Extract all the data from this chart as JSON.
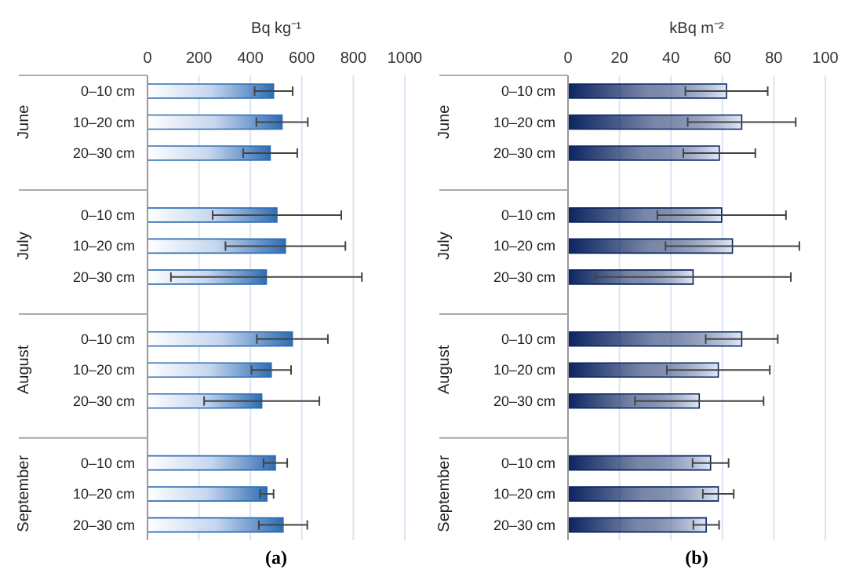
{
  "chart_data": [
    {
      "type": "bar",
      "orientation": "horizontal",
      "title": "(a)",
      "xlabel": "Bq kg⁻¹",
      "categories": [
        "0–10 cm",
        "10–20 cm",
        "20–30 cm",
        null,
        "0–10 cm",
        "10–20 cm",
        "20–30 cm",
        null,
        "0–10 cm",
        "10–20 cm",
        "20–30 cm",
        null,
        "0–10 cm",
        "10–20 cm",
        "20–30 cm"
      ],
      "values": [
        490,
        523,
        477,
        null,
        503,
        536,
        462,
        null,
        563,
        481,
        444,
        null,
        497,
        464,
        527
      ],
      "errors": [
        74,
        100,
        105,
        null,
        250,
        233,
        371,
        null,
        138,
        77,
        224,
        null,
        46,
        26,
        94
      ],
      "color": "#2f6db3",
      "xlim": [
        0,
        1000
      ],
      "xticks": [
        0,
        200,
        400,
        600,
        800,
        1000
      ],
      "grid": "x",
      "annotations": [
        "June",
        "July",
        "August",
        "September"
      ]
    },
    {
      "type": "bar",
      "orientation": "horizontal",
      "title": "(b)",
      "xlabel": "kBq m⁻²",
      "categories": [
        "0–10 cm",
        "10–20 cm",
        "20–30 cm",
        null,
        "0–10 cm",
        "10–20 cm",
        "20–30 cm",
        null,
        "0–10 cm",
        "10–20 cm",
        "20–30 cm",
        null,
        "0–10 cm",
        "10–20 cm",
        "20–30 cm"
      ],
      "values": [
        61.6,
        67.5,
        58.8,
        null,
        59.7,
        63.9,
        48.6,
        null,
        67.5,
        58.4,
        51,
        null,
        55.4,
        58.4,
        53.7
      ],
      "errors": [
        16,
        21,
        14,
        null,
        25,
        26,
        38,
        null,
        14,
        20,
        25,
        null,
        7,
        6,
        5
      ],
      "color": "#0b2460",
      "xlim": [
        0,
        100
      ],
      "xticks": [
        0,
        20,
        40,
        60,
        80,
        100
      ],
      "grid": "x",
      "annotations": [
        "June",
        "July",
        "August",
        "September"
      ]
    }
  ]
}
